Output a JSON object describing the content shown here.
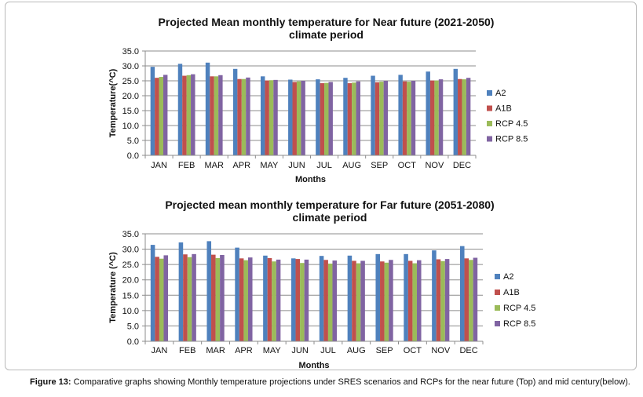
{
  "caption": {
    "label": "Figure 13:",
    "text": " Comparative graphs showing Monthly temperature projections under SRES scenarios and RCPs for the near future (Top) and mid century(below)."
  },
  "colors": {
    "A2": "#4f81bd",
    "A1B": "#c0504d",
    "RCP 4.5": "#9bbb59",
    "RCP 8.5": "#8064a2",
    "grid": "#8c8c8c",
    "border": "#b9b9b9"
  },
  "chart_data": [
    {
      "type": "bar",
      "title": [
        "Projected Mean monthly temperature for Near future (2021-2050)",
        "climate period"
      ],
      "xlabel": "Months",
      "ylabel": "Temperature(^C)",
      "ylim": [
        0,
        35
      ],
      "yticks": [
        "0.0",
        "5.0",
        "10.0",
        "15.0",
        "20.0",
        "25.0",
        "30.0",
        "35.0"
      ],
      "grid": true,
      "legend_position": "right",
      "categories": [
        "JAN",
        "FEB",
        "MAR",
        "APR",
        "MAY",
        "JUN",
        "JUL",
        "AUG",
        "SEP",
        "OCT",
        "NOV",
        "DEC"
      ],
      "series": [
        {
          "name": "A2",
          "values": [
            29.7,
            30.7,
            31.1,
            29.0,
            26.5,
            25.4,
            25.5,
            26.0,
            26.7,
            27.0,
            28.1,
            29.0
          ]
        },
        {
          "name": "A1B",
          "values": [
            26.0,
            26.7,
            26.5,
            25.6,
            25.1,
            24.6,
            24.2,
            24.2,
            24.5,
            24.8,
            25.1,
            25.6
          ]
        },
        {
          "name": "RCP 4.5",
          "values": [
            26.3,
            26.9,
            26.5,
            25.6,
            25.2,
            24.8,
            24.3,
            24.4,
            24.7,
            24.7,
            25.1,
            25.5
          ]
        },
        {
          "name": "RCP 8.5",
          "values": [
            27.0,
            27.2,
            26.9,
            26.1,
            25.3,
            25.0,
            24.6,
            24.8,
            25.0,
            25.0,
            25.5,
            26.0
          ]
        }
      ]
    },
    {
      "type": "bar",
      "title": [
        "Projected mean monthly temperature for Far future (2051-2080)",
        "climate period"
      ],
      "xlabel": "Months",
      "ylabel": "Temperature (^C)",
      "ylim": [
        0,
        35
      ],
      "yticks": [
        "0.0",
        "5.0",
        "10.0",
        "15.0",
        "20.0",
        "25.0",
        "30.0",
        "35.0"
      ],
      "grid": true,
      "legend_position": "right",
      "categories": [
        "JAN",
        "FEB",
        "MAR",
        "APR",
        "MAY",
        "JUN",
        "JUL",
        "AUG",
        "SEP",
        "OCT",
        "NOV",
        "DEC"
      ],
      "series": [
        {
          "name": "A2",
          "values": [
            31.4,
            32.2,
            32.6,
            30.5,
            27.9,
            27.0,
            27.8,
            27.9,
            28.4,
            28.4,
            29.6,
            31.0
          ]
        },
        {
          "name": "A1B",
          "values": [
            27.5,
            28.3,
            28.2,
            27.0,
            27.1,
            26.8,
            26.5,
            26.2,
            26.0,
            26.2,
            26.7,
            27.0
          ]
        },
        {
          "name": "RCP 4.5",
          "values": [
            26.9,
            27.4,
            27.1,
            26.4,
            26.0,
            25.5,
            25.3,
            25.4,
            25.6,
            25.4,
            26.1,
            26.5
          ]
        },
        {
          "name": "RCP 8.5",
          "values": [
            28.0,
            28.4,
            28.1,
            27.3,
            26.6,
            26.6,
            26.3,
            26.2,
            26.5,
            26.4,
            26.8,
            27.2
          ]
        }
      ]
    }
  ]
}
